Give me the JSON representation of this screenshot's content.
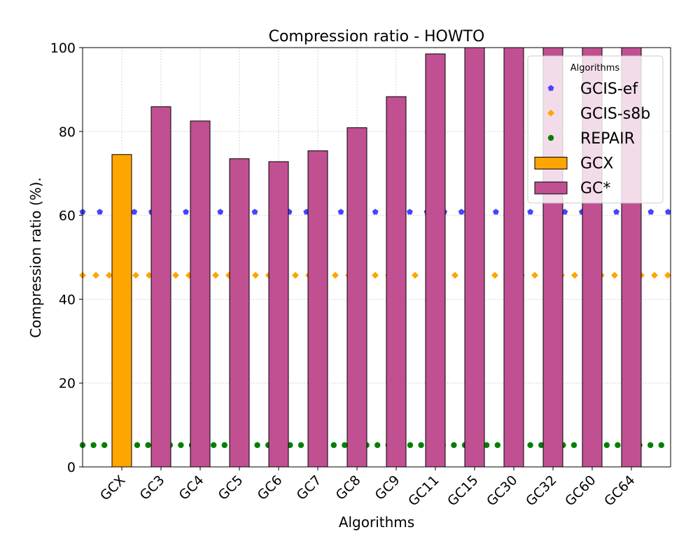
{
  "chart_data": {
    "type": "bar",
    "title": "Compression ratio -  HOWTO",
    "xlabel": "Algorithms",
    "ylabel": "Compression ratio (%).",
    "ylim": [
      0,
      100
    ],
    "yticks": [
      "0",
      "20",
      "40",
      "60",
      "80",
      "100"
    ],
    "grid": true,
    "categories": [
      "GCX",
      "GC3",
      "GC4",
      "GC5",
      "GC6",
      "GC7",
      "GC8",
      "GC9",
      "GC11",
      "GC15",
      "GC30",
      "GC32",
      "GC60",
      "GC64"
    ],
    "series": [
      {
        "name": "GCX",
        "values": [
          74.5,
          null,
          null,
          null,
          null,
          null,
          null,
          null,
          null,
          null,
          null,
          null,
          null,
          null
        ],
        "color": "#FFA500"
      },
      {
        "name": "GC*",
        "values": [
          null,
          85.9,
          82.5,
          73.5,
          72.8,
          75.4,
          80.9,
          88.3,
          98.5,
          100,
          100,
          100,
          100,
          100
        ],
        "color": "#C05092"
      }
    ],
    "reference_lines": [
      {
        "name": "GCIS-ef",
        "value": 60.8,
        "color": "#4444FF",
        "marker": "pentagon"
      },
      {
        "name": "GCIS-s8b",
        "value": 45.7,
        "color": "#FFA500",
        "marker": "diamond"
      },
      {
        "name": "REPAIR",
        "value": 5.2,
        "color": "#008000",
        "marker": "circle"
      }
    ],
    "legend": {
      "title": "Algorithms",
      "position": "top-right",
      "entries": [
        "GCIS-ef",
        "GCIS-s8b",
        "REPAIR",
        "GCX",
        "GC*"
      ]
    }
  }
}
